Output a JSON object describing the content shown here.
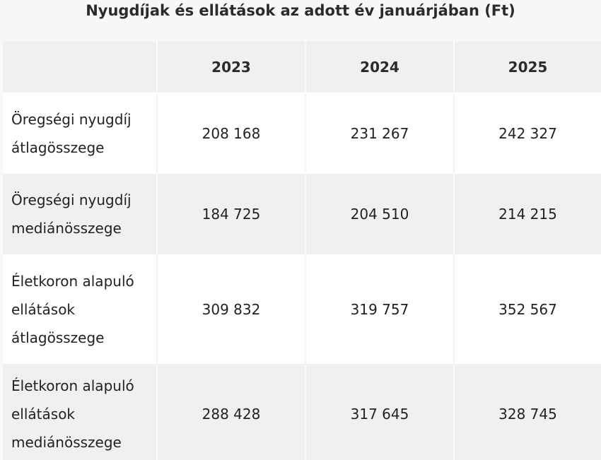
{
  "title": "Nyugdíjak és ellátások az adott év januárjában (Ft)",
  "table": {
    "headers": [
      "",
      "2023",
      "2024",
      "2025"
    ],
    "rows": [
      {
        "label": "Öregségi nyugdíj átlagösszege",
        "values": [
          "208 168",
          "231 267",
          "242 327"
        ]
      },
      {
        "label": "Öregségi nyugdíj mediánösszege",
        "values": [
          "184 725",
          "204 510",
          "214 215"
        ]
      },
      {
        "label": "Életkoron alapuló ellátások átlagösszege",
        "values": [
          "309 832",
          "319 757",
          "352 567"
        ]
      },
      {
        "label": "Életkoron alapuló ellátások mediánösszege",
        "values": [
          "288 428",
          "317 645",
          "328 745"
        ]
      }
    ]
  }
}
